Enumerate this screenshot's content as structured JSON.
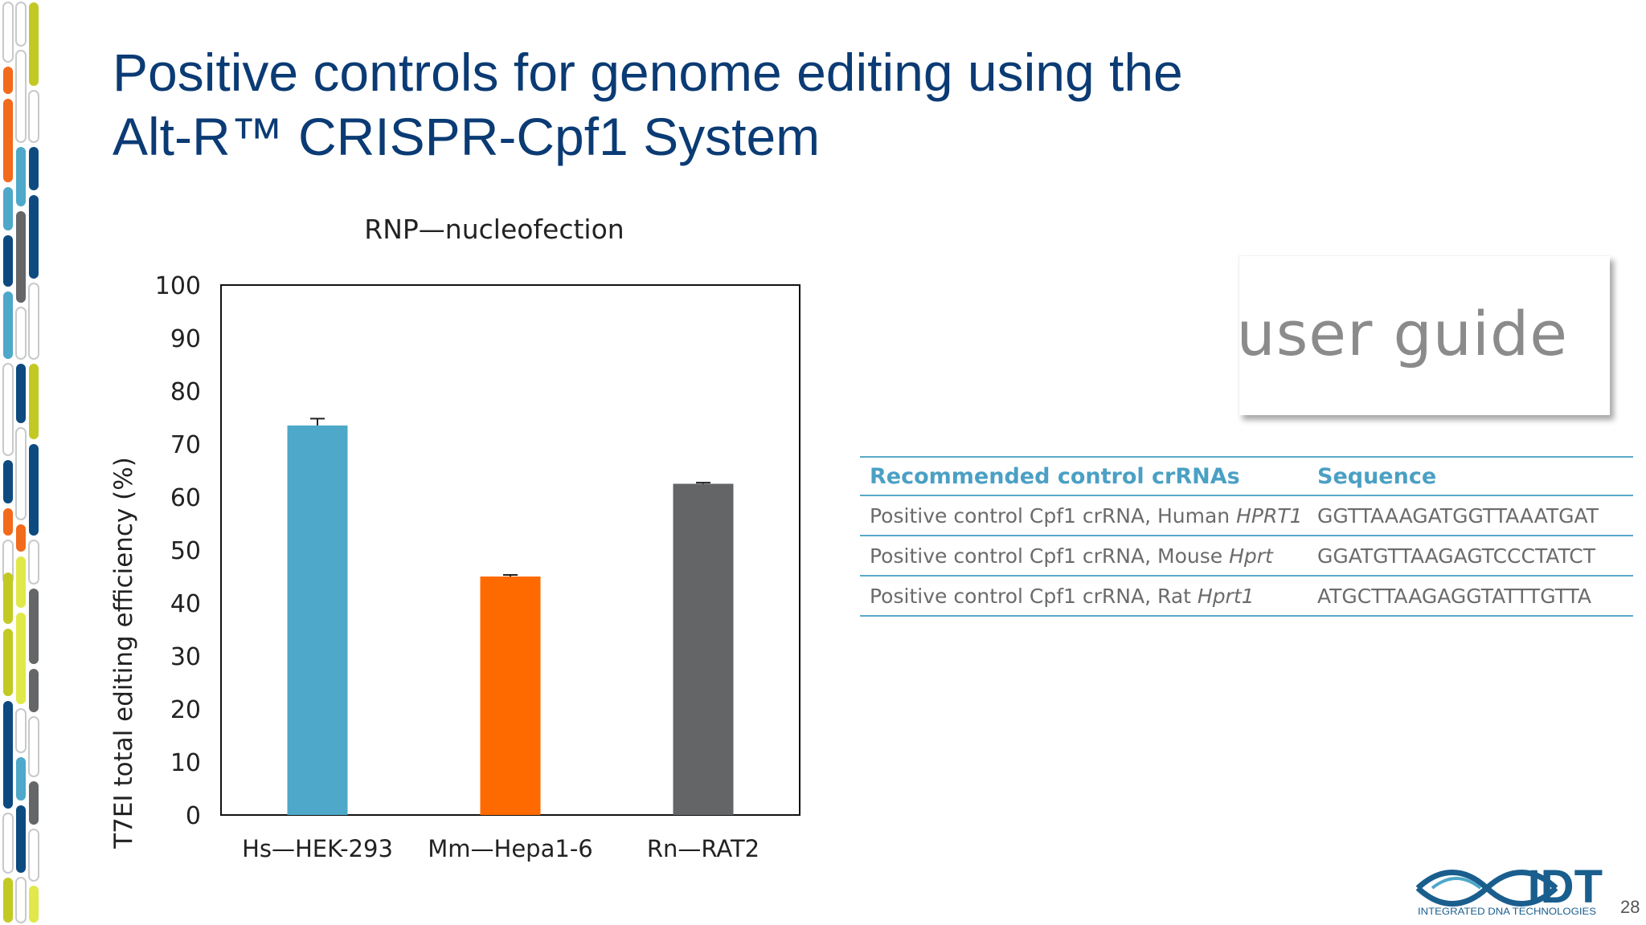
{
  "slide": {
    "title_line1": "Positive controls for genome editing using the",
    "title_line2": "Alt-R™ CRISPR-Cpf1 System",
    "page_number": "28"
  },
  "colors": {
    "title": "#0b3b74",
    "table_accent": "#4ba0c4",
    "bar_hek": "#4ea8c9",
    "bar_hepa": "#ff6a00",
    "bar_rat": "#636566"
  },
  "chart_data": {
    "type": "bar",
    "title": "RNP—nucleofection",
    "xlabel": "",
    "ylabel": "T7EI total editing efficiency (%)",
    "ylim": [
      0,
      100
    ],
    "yticks": [
      0,
      10,
      20,
      30,
      40,
      50,
      60,
      70,
      80,
      90,
      100
    ],
    "categories": [
      "Hs—HEK-293",
      "Mm—Hepa1-6",
      "Rn—RAT2"
    ],
    "values": [
      73.5,
      45,
      62.5
    ],
    "errors": [
      1.3,
      0.3,
      0.2
    ],
    "bar_colors": [
      "#4ea8c9",
      "#ff6a00",
      "#636566"
    ],
    "grid": false
  },
  "user_guide_card": {
    "text": "user guide"
  },
  "crrna_table": {
    "headers": [
      "Recommended control crRNAs",
      "Sequence"
    ],
    "rows": [
      {
        "name_prefix": "Positive control Cpf1 crRNA, Human ",
        "gene": "HPRT1",
        "sequence": "GGTTAAAGATGGTTAAATGAT"
      },
      {
        "name_prefix": "Positive control Cpf1 crRNA, Mouse ",
        "gene": "Hprt",
        "sequence": "GGATGTTAAGAGTCCCTATCT"
      },
      {
        "name_prefix": "Positive control Cpf1 crRNA, Rat ",
        "gene": "Hprt1",
        "sequence": "ATGCTTAAGAGGTATTTGTTA"
      }
    ]
  },
  "logo": {
    "text": "IDT",
    "tagline": "INTEGRATED DNA TECHNOLOGIES",
    "color": "#1a5e8e"
  }
}
